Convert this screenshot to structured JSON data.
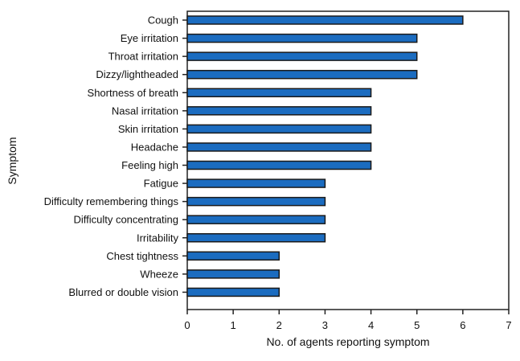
{
  "chart_data": {
    "type": "bar",
    "orientation": "horizontal",
    "categories": [
      "Cough",
      "Eye irritation",
      "Throat irritation",
      "Dizzy/lightheaded",
      "Shortness of breath",
      "Nasal irritation",
      "Skin irritation",
      "Headache",
      "Feeling high",
      "Fatigue",
      "Difficulty remembering things",
      "Difficulty concentrating",
      "Irritability",
      "Chest tightness",
      "Wheeze",
      "Blurred or double vision"
    ],
    "values": [
      6,
      5,
      5,
      5,
      4,
      4,
      4,
      4,
      4,
      3,
      3,
      3,
      3,
      2,
      2,
      2
    ],
    "xlabel": "No. of agents reporting symptom",
    "ylabel": "Symptom",
    "xlim": [
      0,
      7
    ],
    "xticks": [
      "0",
      "1",
      "2",
      "3",
      "4",
      "5",
      "6",
      "7"
    ],
    "grid": false,
    "bar_color": "#1b6cc0",
    "bar_edge_color": "#1a1a1a"
  }
}
